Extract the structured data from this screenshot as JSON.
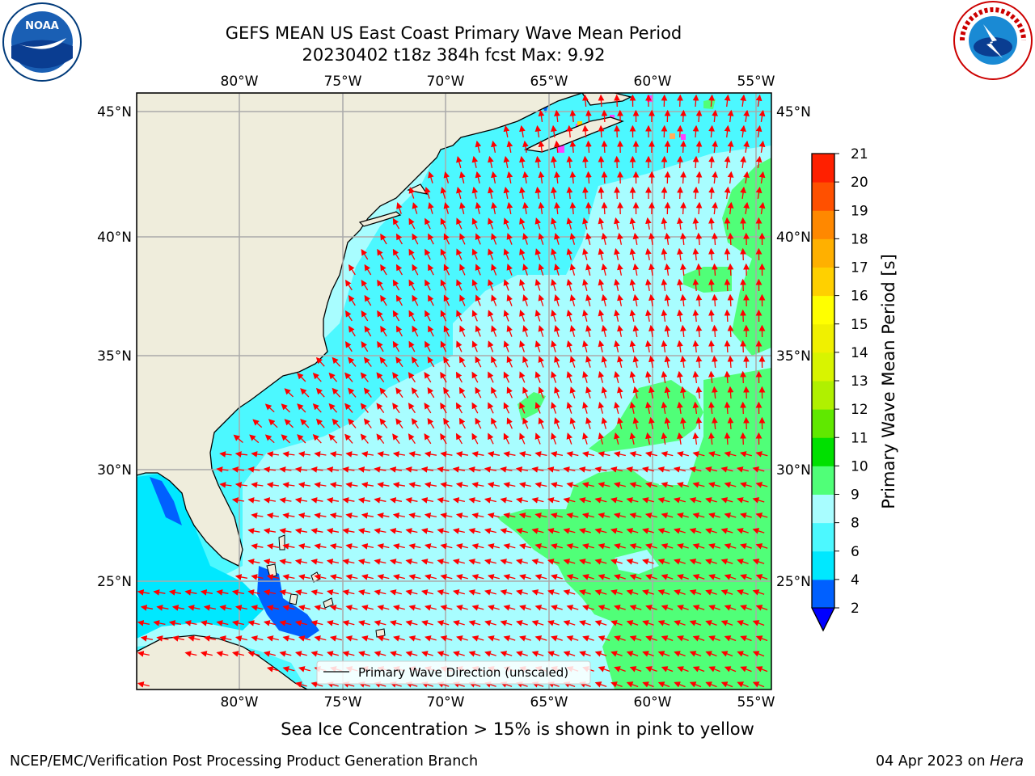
{
  "header": {
    "title_line1": "GEFS MEAN US East Coast Primary Wave Mean Period",
    "title_line2": "20230402 t18z 384h fcst   Max: 9.92"
  },
  "map": {
    "lon_labels": [
      "80°W",
      "75°W",
      "70°W",
      "65°W",
      "60°W",
      "55°W"
    ],
    "lat_labels": [
      "45°N",
      "40°N",
      "35°N",
      "30°N",
      "25°N"
    ],
    "legend_label": "Primary Wave Direction (unscaled)",
    "land_color": "#efeddc",
    "arrow_color": "#ff0000"
  },
  "colorbar": {
    "label": "Primary Wave Mean Period [s]",
    "ticks": [
      "2",
      "4",
      "6",
      "8",
      "9",
      "10",
      "11",
      "12",
      "13",
      "14",
      "15",
      "16",
      "17",
      "18",
      "19",
      "20",
      "21"
    ],
    "colors": [
      "#0060ff",
      "#00e8ff",
      "#4cf8ff",
      "#a8fdff",
      "#50ff78",
      "#00e000",
      "#60e800",
      "#b0f000",
      "#d8f400",
      "#f0f000",
      "#ffff00",
      "#ffd000",
      "#ffb000",
      "#ff8800",
      "#ff5000",
      "#ff2000"
    ],
    "extend_color": "#0000ff"
  },
  "icons": {
    "left_logo": "noaa-logo-icon",
    "right_logo": "nws-logo-icon"
  },
  "footer": {
    "sea_ice_note": "Sea Ice Concentration > 15% is shown in pink to yellow",
    "branch": "NCEP/EMC/Verification Post Processing Product Generation Branch",
    "date": "04 Apr 2023 on",
    "machine": "Hera"
  }
}
